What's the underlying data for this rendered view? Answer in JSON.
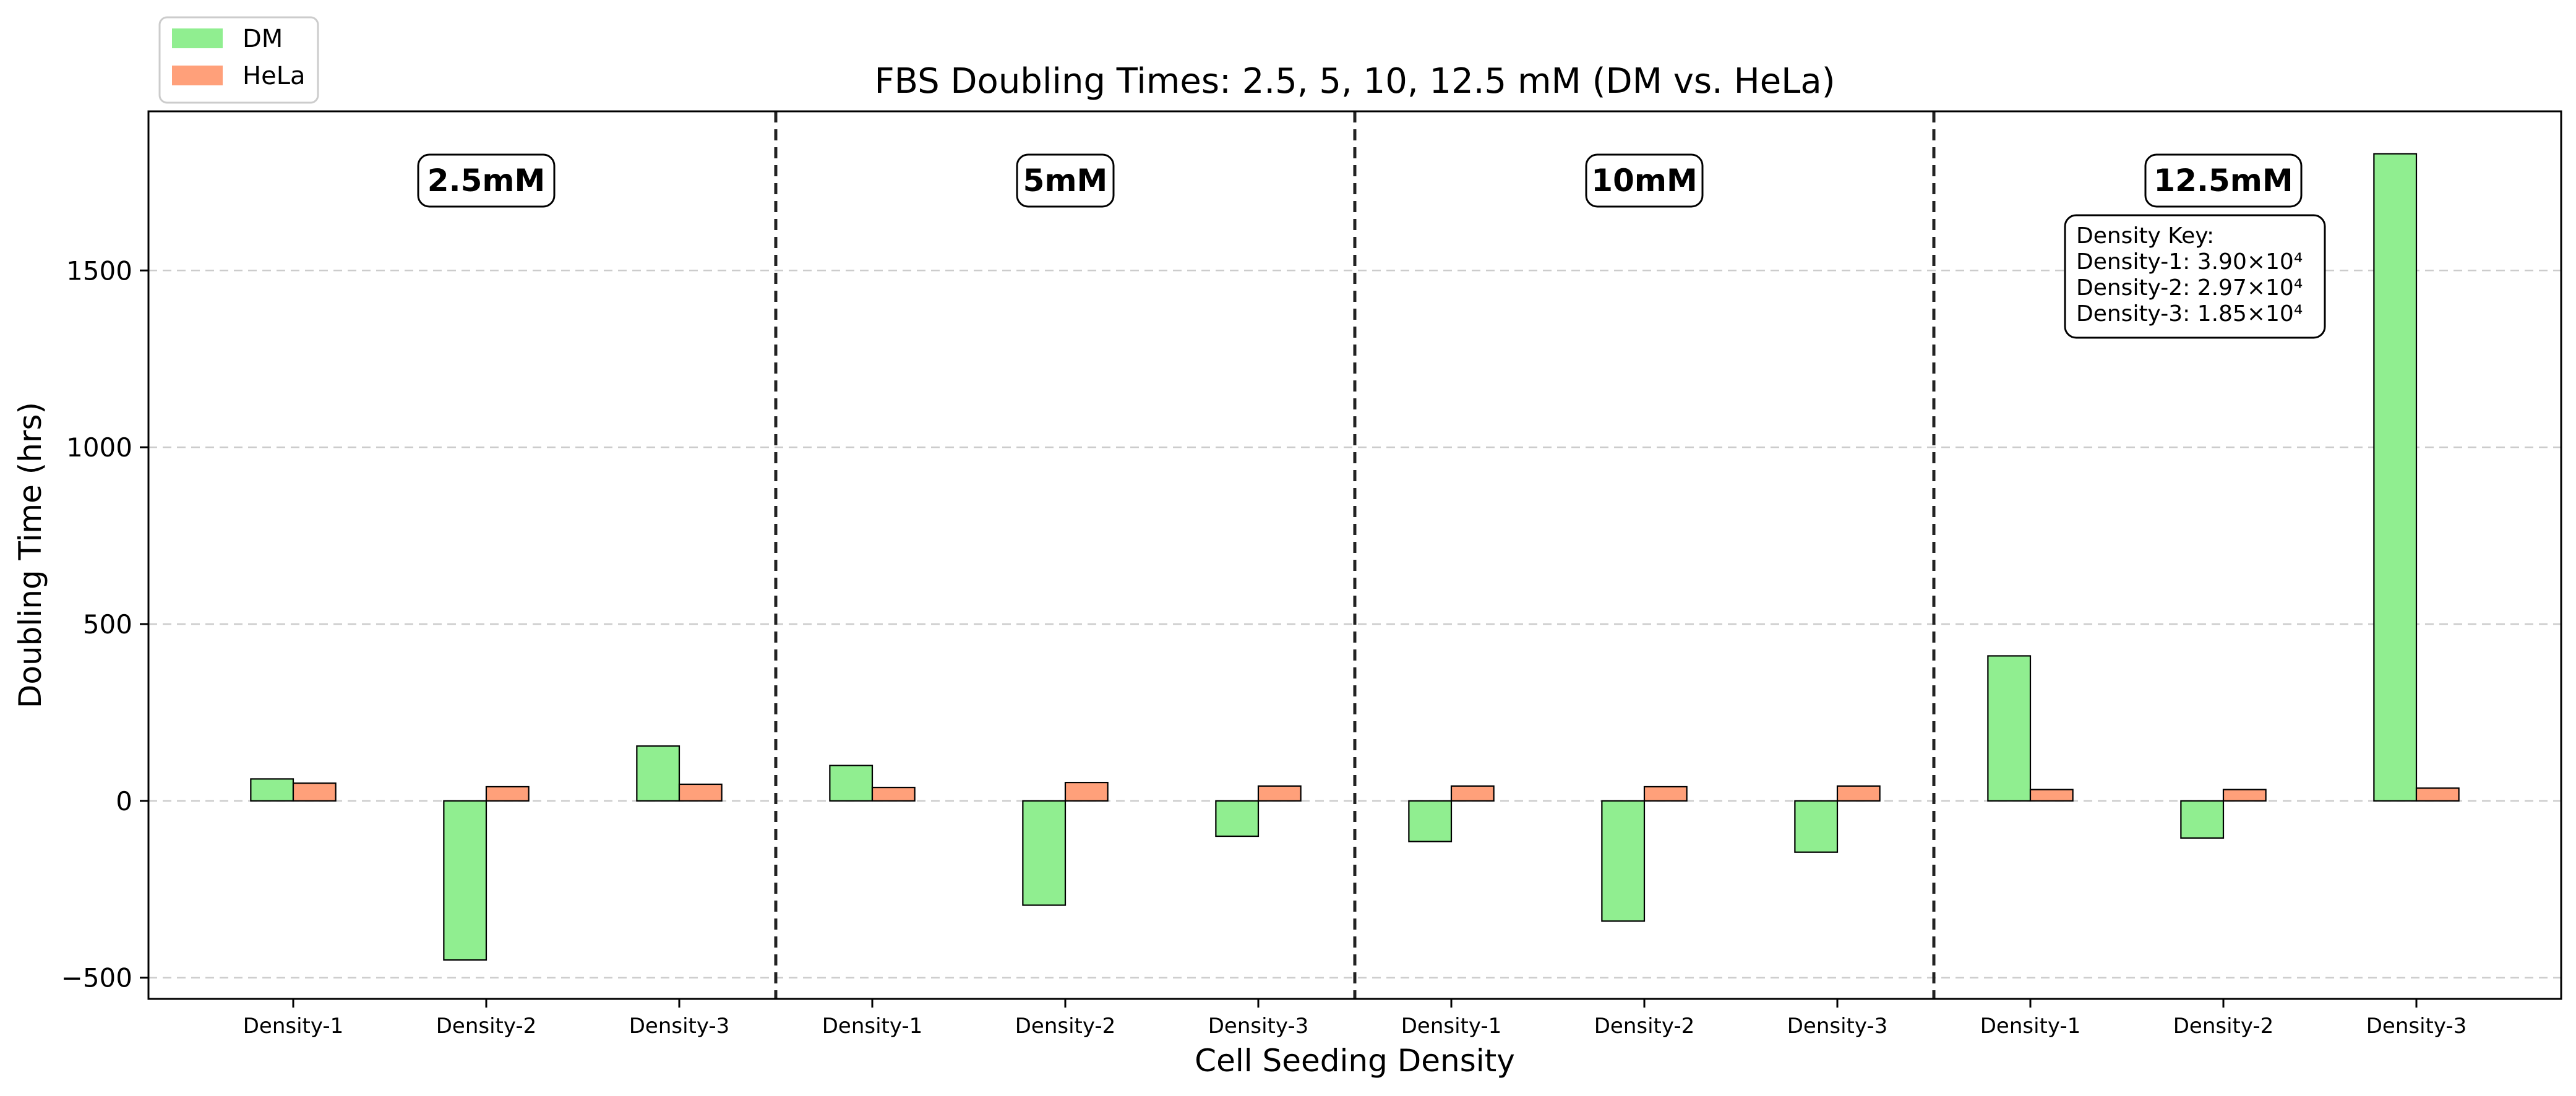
{
  "chart_data": {
    "type": "bar",
    "title": "FBS Doubling Times: 2.5, 5, 10, 12.5 mM (DM vs. HeLa)",
    "xlabel": "Cell Seeding Density",
    "ylabel": "Doubling Time (hrs)",
    "ylim": [
      -560,
      1950
    ],
    "yticks": [
      -500,
      0,
      500,
      1000,
      1500
    ],
    "grid": "y-dashed",
    "legend_position": "top-left",
    "groups": [
      "2.5mM",
      "5mM",
      "10mM",
      "12.5mM"
    ],
    "categories": [
      "Density-1",
      "Density-2",
      "Density-3"
    ],
    "series": [
      {
        "name": "DM",
        "color": "#90ee90",
        "values": [
          [
            62,
            -450,
            155
          ],
          [
            100,
            -295,
            -100
          ],
          [
            -115,
            -340,
            -145
          ],
          [
            410,
            -105,
            1830
          ]
        ]
      },
      {
        "name": "HeLa",
        "color": "#ffa07a",
        "values": [
          [
            50,
            40,
            47
          ],
          [
            38,
            52,
            42
          ],
          [
            42,
            40,
            42
          ],
          [
            32,
            32,
            36
          ]
        ]
      }
    ],
    "density_key": {
      "title": "Density Key:",
      "lines": [
        "Density-1: 3.90×10⁴",
        "Density-2: 2.97×10⁴",
        "Density-3: 1.85×10⁴"
      ]
    }
  }
}
